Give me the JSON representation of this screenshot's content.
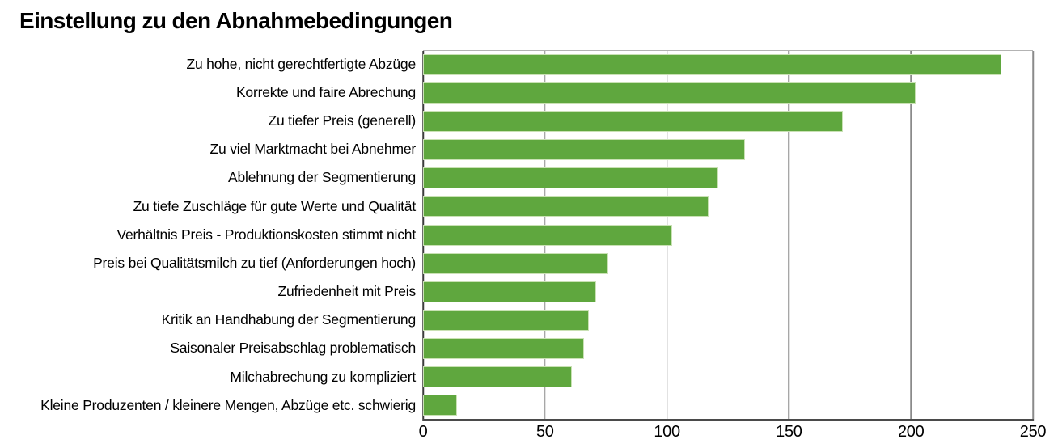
{
  "title": "Einstellung zu den Abnahmebedingungen",
  "chart_data": {
    "type": "bar",
    "orientation": "horizontal",
    "title": "Einstellung zu den Abnahmebedingungen",
    "categories": [
      "Zu hohe, nicht gerechtfertigte Abzüge",
      "Korrekte und faire Abrechung",
      "Zu tiefer Preis (generell)",
      "Zu viel Marktmacht bei Abnehmer",
      "Ablehnung der Segmentierung",
      "Zu tiefe Zuschläge für gute Werte und Qualität",
      "Verhältnis Preis - Produktionskosten stimmt nicht",
      "Preis bei Qualitätsmilch zu tief (Anforderungen hoch)",
      "Zufriedenheit mit Preis",
      "Kritik an Handhabung der Segmentierung",
      "Saisonaler Preisabschlag problematisch",
      "Milchabrechung zu kompliziert",
      "Kleine Produzenten / kleinere Mengen, Abzüge etc. schwierig"
    ],
    "values": [
      237,
      202,
      172,
      132,
      121,
      117,
      102,
      76,
      71,
      68,
      66,
      61,
      14
    ],
    "xlabel": "",
    "ylabel": "",
    "xlim": [
      0,
      250
    ],
    "x_ticks": [
      "0",
      "50",
      "100",
      "150",
      "200",
      "250"
    ],
    "grid": "vertical",
    "legend": "none",
    "colors": {
      "bar_fill": "#5fa73e",
      "bar_edge": "#c9e1b4",
      "gridline": "#8a8a8a",
      "zero_axis": "#3c3c3c",
      "bottom_axis": "#4a4a4a",
      "plot_top_border": "#b3b3b3",
      "text": "#000000"
    }
  }
}
